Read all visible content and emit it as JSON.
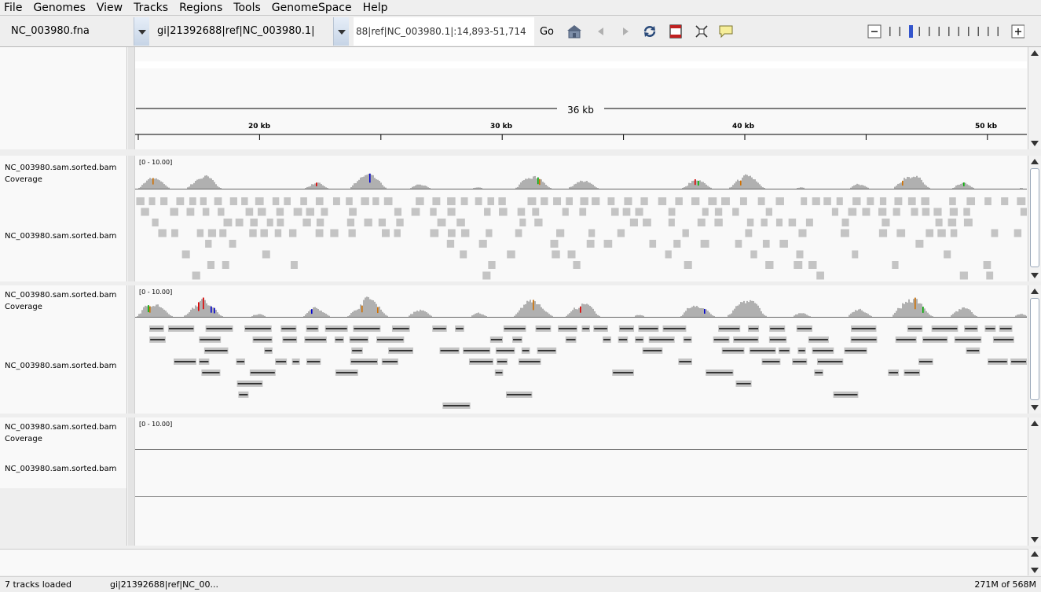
{
  "menu": [
    "File",
    "Genomes",
    "View",
    "Tracks",
    "Regions",
    "Tools",
    "GenomeSpace",
    "Help"
  ],
  "toolbar": {
    "genome": "NC_003980.fna",
    "chromosome": "gi|21392688|ref|NC_003980.1|",
    "locus": "88|ref|NC_003980.1|:14,893-51,714",
    "go_label": "Go",
    "icons": [
      "home-icon",
      "back-arrow-icon",
      "forward-arrow-icon",
      "refresh-icon",
      "roi-icon",
      "resize-icon",
      "popup-text-icon"
    ],
    "zoom_level": 2,
    "zoom_ticks": 12
  },
  "ruler": {
    "span_label": "36 kb",
    "ticks": [
      "20 kb",
      "30 kb",
      "40 kb",
      "50 kb"
    ]
  },
  "tracks": [
    {
      "coverage_name": "NC_003980.sam.sorted.bam Coverage",
      "alignment_name": "NC_003980.sam.sorted.bam",
      "range": "[0 - 10.00]",
      "mode": "collapsed"
    },
    {
      "coverage_name": "NC_003980.sam.sorted.bam Coverage",
      "alignment_name": "NC_003980.sam.sorted.bam",
      "range": "[0 - 10.00]",
      "mode": "expanded"
    },
    {
      "coverage_name": "NC_003980.sam.sorted.bam Coverage",
      "alignment_name": "NC_003980.sam.sorted.bam",
      "range": "[0 - 10.00]",
      "mode": "empty"
    }
  ],
  "status": {
    "left": "7 tracks loaded",
    "middle": "gi|21392688|ref|NC_00...",
    "memory": "271M of 568M"
  },
  "colors": {
    "coverage": "#b0b0b0",
    "read": "#c4c4c4",
    "read_dark": "#333333",
    "mismatch_a": "#00b000",
    "mismatch_c": "#0000d0",
    "mismatch_g": "#d07000",
    "mismatch_t": "#e00000",
    "zoom_current": "#3355cc"
  }
}
